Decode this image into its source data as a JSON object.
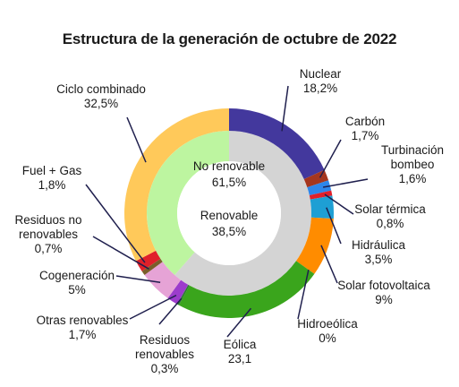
{
  "chart_data": {
    "type": "pie",
    "title": "Estructura de la generación de octubre de 2022",
    "inner_ring": [
      {
        "label": "No renovable",
        "value_label": "61,5%",
        "value": 61.5,
        "color": "#d4d4d4"
      },
      {
        "label": "Renovable",
        "value_label": "38,5%",
        "value": 38.5,
        "color": "#bdf5a0"
      }
    ],
    "outer_ring": [
      {
        "label": "Nuclear",
        "value_label": "18,2%",
        "value": 18.2,
        "color": "#43389d"
      },
      {
        "label": "Carbón",
        "value_label": "1,7%",
        "value": 1.7,
        "color": "#a5361e"
      },
      {
        "label": "Turbinación\nbombeo",
        "value_label": "1,6%",
        "value": 1.6,
        "color": "#2e86ea"
      },
      {
        "label": "Solar térmica",
        "value_label": "0,8%",
        "value": 0.8,
        "color": "#e0202a"
      },
      {
        "label": "Hidráulica",
        "value_label": "3,5%",
        "value": 3.5,
        "color": "#1e9fd4"
      },
      {
        "label": "Solar fotovoltaica",
        "value_label": "9%",
        "value": 9.0,
        "color": "#ff8c00"
      },
      {
        "label": "Hidroeólica",
        "value_label": "0%",
        "value": 0.0,
        "color": "#7cc576"
      },
      {
        "label": "Eólica",
        "value_label": "23,1",
        "value": 23.1,
        "color": "#3aa51c"
      },
      {
        "label": "Residuos\nrenovables",
        "value_label": "0,3%",
        "value": 0.3,
        "color": "#2e7d32"
      },
      {
        "label": "Otras renovables",
        "value_label": "1,7%",
        "value": 1.7,
        "color": "#9c3ccc"
      },
      {
        "label": "Cogeneración",
        "value_label": "5%",
        "value": 5.0,
        "color": "#e6a3d6"
      },
      {
        "label": "Residuos no\nrenovables",
        "value_label": "0,7%",
        "value": 0.7,
        "color": "#7a5e2a"
      },
      {
        "label": "Fuel + Gas",
        "value_label": "1,8%",
        "value": 1.8,
        "color": "#e0202a"
      },
      {
        "label": "Ciclo combinado",
        "value_label": "32,5%",
        "value": 32.5,
        "color": "#ffc95a"
      }
    ]
  }
}
